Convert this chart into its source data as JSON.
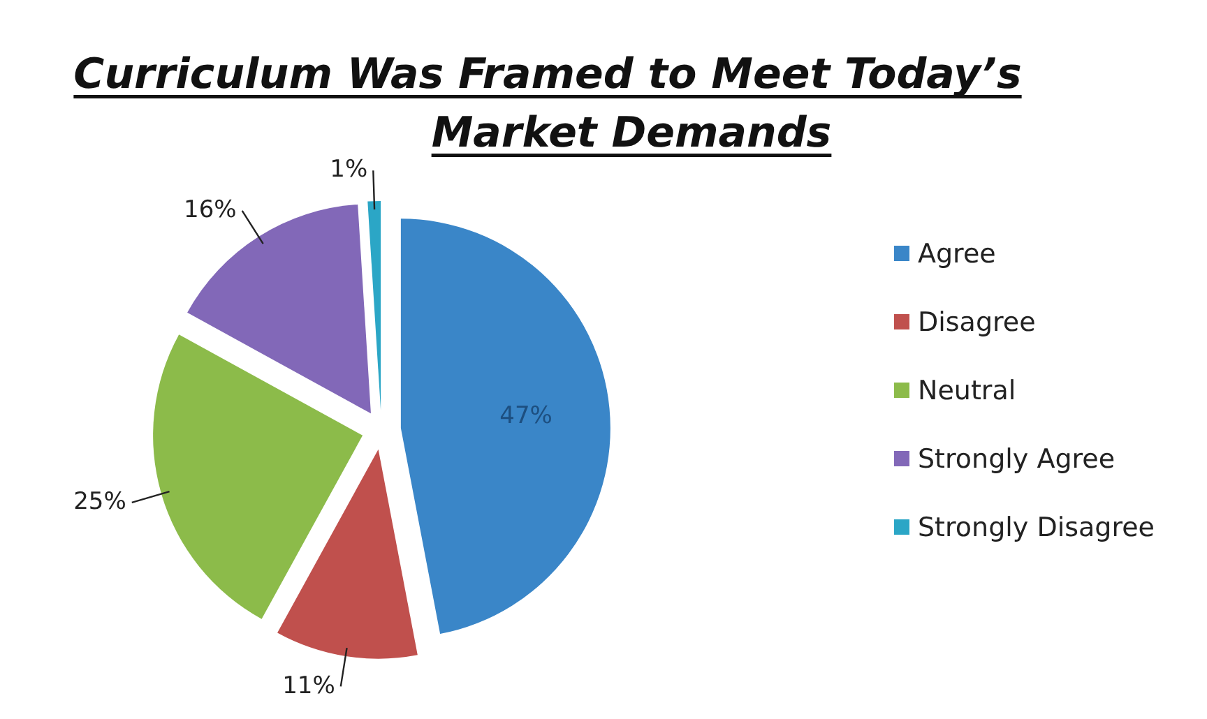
{
  "chart_data": {
    "type": "pie",
    "title": "Curriculum Was Framed to Meet Today’s Market Demands",
    "categories": [
      "Agree",
      "Disagree",
      "Neutral",
      "Strongly Agree",
      "Strongly Disagree"
    ],
    "values": [
      47,
      11,
      25,
      16,
      1
    ],
    "colors": [
      "#3a86c8",
      "#c0504d",
      "#8cbb4a",
      "#8268b8",
      "#2ba6c6"
    ],
    "value_labels": [
      "47%",
      "11%",
      "25%",
      "16%",
      "1%"
    ],
    "legend": "right"
  }
}
